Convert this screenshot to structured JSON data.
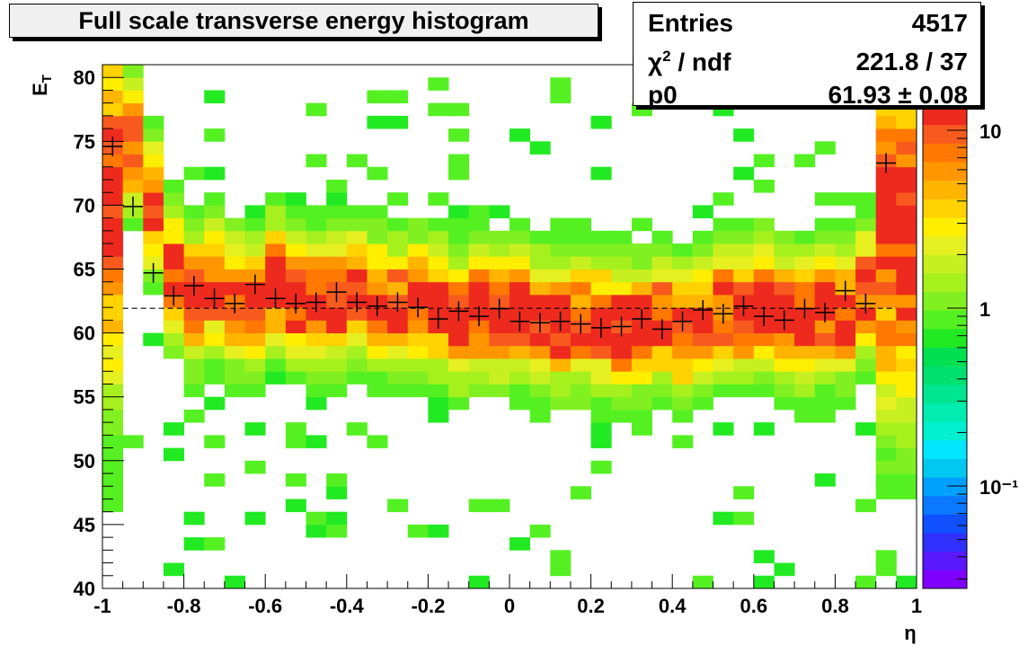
{
  "chart_data": {
    "type": "heatmap",
    "title": "Full scale transverse energy histogram",
    "xlabel": "η",
    "ylabel": "E_T",
    "xlim": [
      -1,
      1
    ],
    "ylim": [
      40,
      81
    ],
    "x_ticks": [
      "-1",
      "-0.8",
      "-0.6",
      "-0.4",
      "-0.2",
      "0",
      "0.2",
      "0.4",
      "0.6",
      "0.8",
      "1"
    ],
    "y_ticks": [
      "40",
      "45",
      "50",
      "55",
      "60",
      "65",
      "70",
      "75",
      "80"
    ],
    "colorbar_ticks": [
      "10",
      "1",
      "10⁻¹"
    ],
    "colorbar_scale": "log",
    "fit": {
      "name": "p0",
      "value": 61.93
    },
    "profile": {
      "x": [
        -0.975,
        -0.925,
        -0.875,
        -0.825,
        -0.775,
        -0.725,
        -0.675,
        -0.625,
        -0.575,
        -0.525,
        -0.475,
        -0.425,
        -0.375,
        -0.325,
        -0.275,
        -0.225,
        -0.175,
        -0.125,
        -0.075,
        -0.025,
        0.025,
        0.075,
        0.125,
        0.175,
        0.225,
        0.275,
        0.325,
        0.375,
        0.425,
        0.475,
        0.525,
        0.575,
        0.625,
        0.675,
        0.725,
        0.775,
        0.825,
        0.875,
        0.925
      ],
      "y": [
        74.6,
        69.9,
        64.7,
        62.9,
        63.7,
        62.7,
        62.3,
        63.8,
        62.7,
        62.3,
        62.4,
        63.2,
        62.4,
        62.1,
        62.4,
        62.0,
        61.1,
        61.7,
        61.3,
        61.9,
        60.9,
        60.8,
        60.9,
        60.7,
        60.4,
        60.5,
        61.1,
        60.3,
        60.9,
        61.8,
        61.5,
        62.1,
        61.3,
        61.0,
        61.9,
        61.6,
        63.3,
        62.3,
        73.3
      ]
    }
  },
  "stats": {
    "entries_label": "Entries",
    "entries_value": "4517",
    "chi2_label": "χ",
    "chi2_sup": "2",
    "chi2_suffix": " / ndf",
    "chi2_value": "221.8 / 37",
    "p0_label": "p0",
    "p0_value": "61.93 ± 0.08"
  },
  "colors": {
    "palette": [
      "#7f00ff",
      "#5a18ff",
      "#3030ff",
      "#1050ff",
      "#0a78ff",
      "#00a0ff",
      "#00c8f0",
      "#00e6ff",
      "#00f0d0",
      "#00ecb0",
      "#00e690",
      "#00e070",
      "#00e050",
      "#22ea22",
      "#55f022",
      "#80f020",
      "#a6f01e",
      "#c8f020",
      "#e6f020",
      "#ffee00",
      "#ffd200",
      "#ffb400",
      "#ff9600",
      "#ff7800",
      "#f85a1e",
      "#ee2a1e"
    ],
    "marker": "#000000",
    "fit_line": "#000000"
  }
}
